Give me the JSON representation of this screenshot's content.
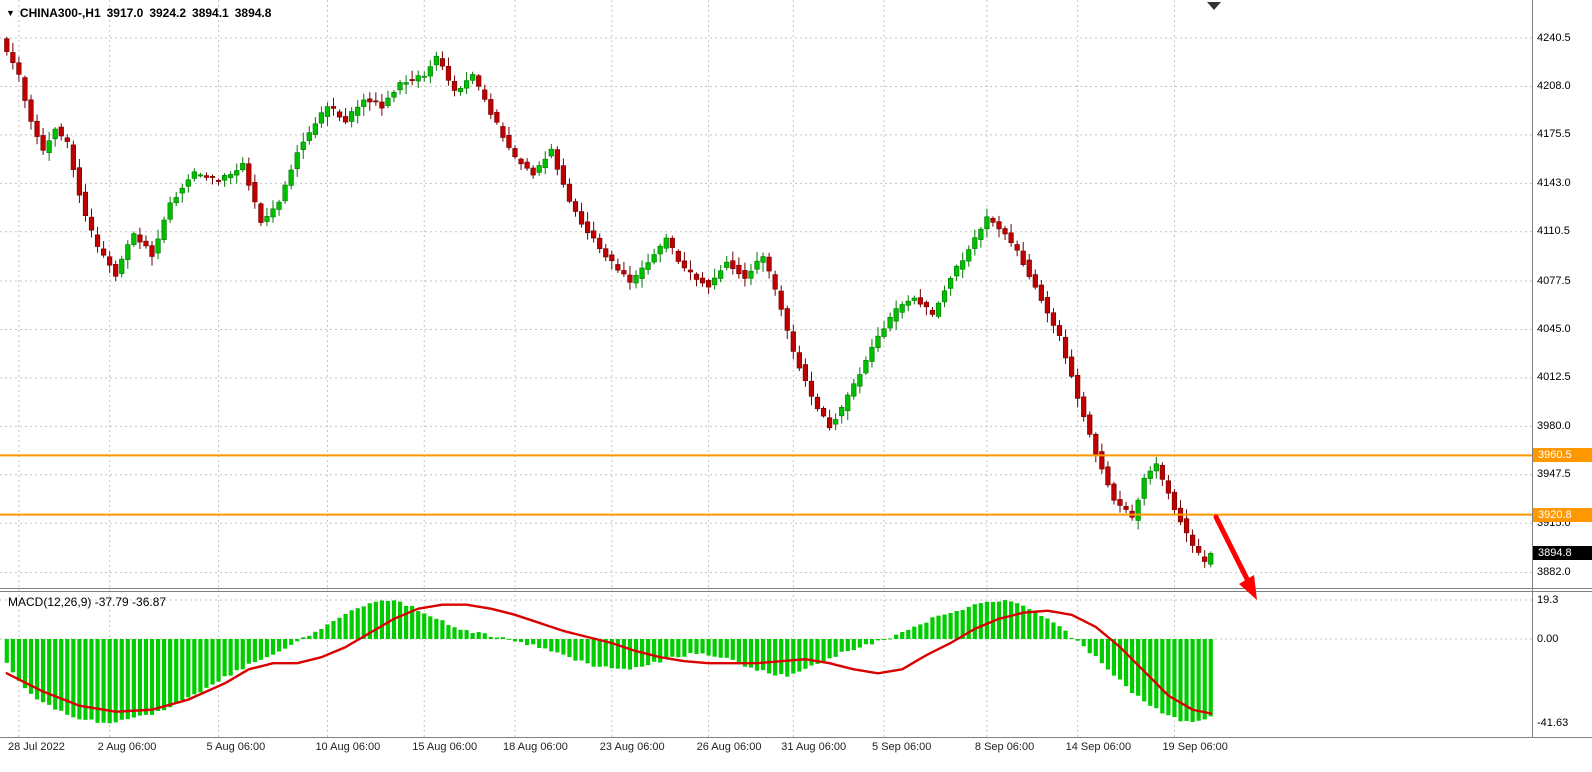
{
  "header": {
    "dropdown_icon": "▼",
    "symbol": "CHINA300-,H1",
    "open": "3917.0",
    "high": "3924.2",
    "low": "3894.1",
    "close": "3894.8"
  },
  "colors": {
    "up": "#00BE00",
    "up_dark": "#007800",
    "down": "#C00000",
    "down_dark": "#6E0000",
    "grid": "#C4C4C4",
    "line_orange": "#FF9800",
    "hist": "#00CC00",
    "signal": "#D90000",
    "arrow": "#FF0000",
    "axis_border": "#808080"
  },
  "price_axis": {
    "ticks": [
      "4240.5",
      "4208.0",
      "4175.5",
      "4143.0",
      "4110.5",
      "4077.5",
      "4045.0",
      "4012.5",
      "3980.0",
      "3947.5",
      "3915.0",
      "3882.0"
    ]
  },
  "levels": {
    "resistance": {
      "value": 3960.5,
      "label": "3960.5"
    },
    "support": {
      "value": 3920.8,
      "label": "3920.8"
    },
    "last_price": {
      "value": 3894.8,
      "label": "3894.8"
    }
  },
  "time_axis": {
    "ticks": [
      {
        "label": "28 Jul 2022",
        "i": 2
      },
      {
        "label": "2 Aug 06:00",
        "i": 17
      },
      {
        "label": "5 Aug 06:00",
        "i": 35
      },
      {
        "label": "10 Aug 06:00",
        "i": 53
      },
      {
        "label": "15 Aug 06:00",
        "i": 69
      },
      {
        "label": "18 Aug 06:00",
        "i": 84
      },
      {
        "label": "23 Aug 06:00",
        "i": 100
      },
      {
        "label": "26 Aug 06:00",
        "i": 116
      },
      {
        "label": "31 Aug 06:00",
        "i": 130
      },
      {
        "label": "5 Sep 06:00",
        "i": 145
      },
      {
        "label": "8 Sep 06:00",
        "i": 162
      },
      {
        "label": "14 Sep 06:00",
        "i": 177
      },
      {
        "label": "19 Sep 06:00",
        "i": 193
      }
    ]
  },
  "macd": {
    "label": "MACD(12,26,9) -37.79 -36.87",
    "ticks": [
      {
        "label": "19.3",
        "v": 19.3
      },
      {
        "label": "0.00",
        "v": 0
      },
      {
        "label": "-41.63",
        "v": -41.63
      }
    ]
  },
  "chart_data": [
    {
      "type": "candlestick",
      "symbol": "CHINA300-",
      "timeframe": "H1",
      "ohlc_current": {
        "open": 3917.0,
        "high": 3924.2,
        "low": 3894.1,
        "close": 3894.8
      },
      "y_axis_ticks": [
        4240.5,
        4208.0,
        4175.5,
        4143.0,
        4110.5,
        4077.5,
        4045.0,
        4012.5,
        3980.0,
        3947.5,
        3915.0,
        3882.0
      ],
      "x_axis_ticks": [
        "28 Jul 2022",
        "2 Aug 06:00",
        "5 Aug 06:00",
        "10 Aug 06:00",
        "15 Aug 06:00",
        "18 Aug 06:00",
        "23 Aug 06:00",
        "26 Aug 06:00",
        "31 Aug 06:00",
        "5 Sep 06:00",
        "8 Sep 06:00",
        "14 Sep 06:00",
        "19 Sep 06:00"
      ],
      "horizontal_lines": [
        3960.5,
        3920.8
      ],
      "annotations": [
        "red down-right arrow after last candle pointing toward further decline"
      ],
      "n_bars": 200,
      "close_waypoints": [
        [
          0,
          4230
        ],
        [
          2,
          4215
        ],
        [
          4,
          4185
        ],
        [
          6,
          4165
        ],
        [
          8,
          4180
        ],
        [
          10,
          4170
        ],
        [
          13,
          4120
        ],
        [
          15,
          4100
        ],
        [
          18,
          4082
        ],
        [
          21,
          4110
        ],
        [
          24,
          4095
        ],
        [
          27,
          4130
        ],
        [
          31,
          4150
        ],
        [
          35,
          4145
        ],
        [
          39,
          4155
        ],
        [
          42,
          4118
        ],
        [
          45,
          4130
        ],
        [
          48,
          4165
        ],
        [
          53,
          4195
        ],
        [
          56,
          4185
        ],
        [
          59,
          4200
        ],
        [
          62,
          4195
        ],
        [
          65,
          4210
        ],
        [
          69,
          4215
        ],
        [
          71,
          4228
        ],
        [
          74,
          4205
        ],
        [
          77,
          4215
        ],
        [
          80,
          4190
        ],
        [
          84,
          4160
        ],
        [
          87,
          4150
        ],
        [
          90,
          4165
        ],
        [
          93,
          4130
        ],
        [
          96,
          4110
        ],
        [
          100,
          4090
        ],
        [
          103,
          4076
        ],
        [
          106,
          4090
        ],
        [
          109,
          4105
        ],
        [
          112,
          4085
        ],
        [
          116,
          4075
        ],
        [
          119,
          4090
        ],
        [
          122,
          4080
        ],
        [
          125,
          4095
        ],
        [
          128,
          4060
        ],
        [
          130,
          4030
        ],
        [
          133,
          4000
        ],
        [
          136,
          3980
        ],
        [
          138,
          3992
        ],
        [
          141,
          4015
        ],
        [
          144,
          4040
        ],
        [
          147,
          4058
        ],
        [
          150,
          4066
        ],
        [
          153,
          4055
        ],
        [
          156,
          4080
        ],
        [
          159,
          4098
        ],
        [
          162,
          4120
        ],
        [
          165,
          4110
        ],
        [
          168,
          4090
        ],
        [
          171,
          4065
        ],
        [
          174,
          4040
        ],
        [
          177,
          4000
        ],
        [
          180,
          3962
        ],
        [
          183,
          3932
        ],
        [
          186,
          3918
        ],
        [
          188,
          3945
        ],
        [
          190,
          3955
        ],
        [
          193,
          3925
        ],
        [
          196,
          3900
        ],
        [
          198,
          3888
        ],
        [
          199,
          3894.8
        ]
      ]
    },
    {
      "type": "bar",
      "title": "MACD(12,26,9)",
      "values_current": [
        -37.79,
        -36.87
      ],
      "ylim": [
        -41.63,
        19.3
      ],
      "zero_line": 0.0,
      "histogram_waypoints": [
        [
          0,
          -12
        ],
        [
          3,
          -24
        ],
        [
          6,
          -32
        ],
        [
          9,
          -36
        ],
        [
          12,
          -39
        ],
        [
          15,
          -41
        ],
        [
          18,
          -41
        ],
        [
          21,
          -39
        ],
        [
          24,
          -37
        ],
        [
          28,
          -32
        ],
        [
          32,
          -26
        ],
        [
          36,
          -19
        ],
        [
          40,
          -13
        ],
        [
          44,
          -7
        ],
        [
          48,
          -1
        ],
        [
          51,
          4
        ],
        [
          54,
          9
        ],
        [
          57,
          14
        ],
        [
          60,
          18
        ],
        [
          63,
          19.3
        ],
        [
          66,
          17
        ],
        [
          69,
          13
        ],
        [
          72,
          9
        ],
        [
          75,
          5
        ],
        [
          78,
          3
        ],
        [
          81,
          1
        ],
        [
          84,
          -1
        ],
        [
          87,
          -3
        ],
        [
          90,
          -6
        ],
        [
          94,
          -10
        ],
        [
          98,
          -14
        ],
        [
          102,
          -15
        ],
        [
          106,
          -13
        ],
        [
          110,
          -9
        ],
        [
          114,
          -7
        ],
        [
          118,
          -9
        ],
        [
          122,
          -13
        ],
        [
          126,
          -17
        ],
        [
          129,
          -18
        ],
        [
          132,
          -15
        ],
        [
          135,
          -11
        ],
        [
          138,
          -7
        ],
        [
          141,
          -4
        ],
        [
          144,
          -1
        ],
        [
          147,
          2
        ],
        [
          150,
          6
        ],
        [
          153,
          10
        ],
        [
          156,
          13
        ],
        [
          159,
          16
        ],
        [
          162,
          19
        ],
        [
          165,
          19.3
        ],
        [
          168,
          17
        ],
        [
          171,
          12
        ],
        [
          174,
          6
        ],
        [
          177,
          -1
        ],
        [
          180,
          -9
        ],
        [
          183,
          -18
        ],
        [
          186,
          -26
        ],
        [
          189,
          -33
        ],
        [
          192,
          -38
        ],
        [
          195,
          -41
        ],
        [
          197,
          -41
        ],
        [
          199,
          -37.79
        ]
      ],
      "signal_waypoints": [
        [
          0,
          -17
        ],
        [
          6,
          -26
        ],
        [
          12,
          -33
        ],
        [
          18,
          -36
        ],
        [
          24,
          -35
        ],
        [
          30,
          -30
        ],
        [
          36,
          -22
        ],
        [
          40,
          -15
        ],
        [
          44,
          -12
        ],
        [
          48,
          -12
        ],
        [
          52,
          -9
        ],
        [
          56,
          -4
        ],
        [
          60,
          3
        ],
        [
          64,
          10
        ],
        [
          68,
          15
        ],
        [
          72,
          17
        ],
        [
          76,
          17
        ],
        [
          80,
          15
        ],
        [
          84,
          12
        ],
        [
          88,
          8
        ],
        [
          92,
          4
        ],
        [
          96,
          1
        ],
        [
          100,
          -2
        ],
        [
          104,
          -6
        ],
        [
          108,
          -9
        ],
        [
          112,
          -11
        ],
        [
          116,
          -12
        ],
        [
          120,
          -12
        ],
        [
          124,
          -12
        ],
        [
          128,
          -11
        ],
        [
          132,
          -10
        ],
        [
          136,
          -12
        ],
        [
          140,
          -15
        ],
        [
          144,
          -17
        ],
        [
          148,
          -15
        ],
        [
          152,
          -8
        ],
        [
          156,
          -2
        ],
        [
          160,
          5
        ],
        [
          164,
          10
        ],
        [
          168,
          13
        ],
        [
          172,
          14
        ],
        [
          176,
          12
        ],
        [
          180,
          6
        ],
        [
          184,
          -4
        ],
        [
          188,
          -16
        ],
        [
          192,
          -28
        ],
        [
          196,
          -35
        ],
        [
          199,
          -36.87
        ]
      ]
    }
  ]
}
